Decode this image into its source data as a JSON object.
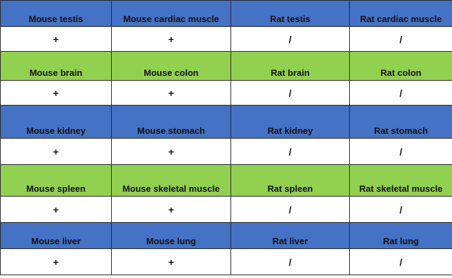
{
  "colors": {
    "blue_band": "#4472C4",
    "green_band": "#92D050",
    "value_row": "#FFFFFF"
  },
  "rows": [
    {
      "band": "blue",
      "labels": [
        "Mouse testis",
        "Mouse cardiac muscle",
        "Rat testis",
        "Rat cardiac muscle"
      ],
      "values": [
        "+",
        "+",
        "/",
        "/"
      ]
    },
    {
      "band": "green",
      "labels": [
        "Mouse brain",
        "Mouse colon",
        "Rat brain",
        "Rat colon"
      ],
      "values": [
        "+",
        "+",
        "/",
        "/"
      ]
    },
    {
      "band": "blue",
      "labels": [
        "Mouse kidney",
        "Mouse stomach",
        "Rat kidney",
        "Rat stomach"
      ],
      "values": [
        "+",
        "+",
        "/",
        "/"
      ]
    },
    {
      "band": "green",
      "labels": [
        "Mouse spleen",
        "Mouse skeletal muscle",
        "Rat spleen",
        "Rat skeletal muscle"
      ],
      "values": [
        "+",
        "+",
        "/",
        "/"
      ]
    },
    {
      "band": "blue",
      "labels": [
        "Mouse liver",
        "Mouse lung",
        "Rat liver",
        "Rat lung"
      ],
      "values": [
        "+",
        "+",
        "/",
        "/"
      ]
    }
  ]
}
